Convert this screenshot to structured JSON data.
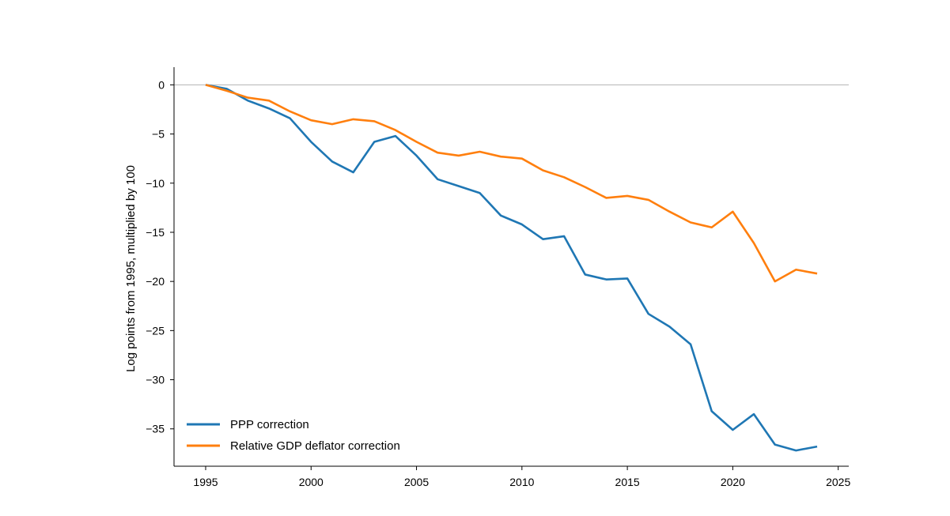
{
  "chart_data": {
    "type": "line",
    "title": "",
    "xlabel": "",
    "ylabel": "Log points from 1995, multiplied by 100",
    "xlim": [
      1993.5,
      2025.5
    ],
    "ylim": [
      -38.8,
      1.8
    ],
    "x_ticks": [
      1995,
      2000,
      2005,
      2010,
      2015,
      2020,
      2025
    ],
    "y_ticks": [
      0,
      -5,
      -10,
      -15,
      -20,
      -25,
      -30,
      -35
    ],
    "grid": false,
    "reference_line": 0,
    "legend_position": "bottom-left",
    "x": [
      1995,
      1996,
      1997,
      1998,
      1999,
      2000,
      2001,
      2002,
      2003,
      2004,
      2005,
      2006,
      2007,
      2008,
      2009,
      2010,
      2011,
      2012,
      2013,
      2014,
      2015,
      2016,
      2017,
      2018,
      2019,
      2020,
      2021,
      2022,
      2023,
      2024
    ],
    "series": [
      {
        "name": "PPP correction",
        "color": "#1f77b4",
        "values": [
          0,
          -0.4,
          -1.6,
          -2.4,
          -3.4,
          -5.8,
          -7.8,
          -8.9,
          -5.8,
          -5.2,
          -7.2,
          -9.6,
          -10.3,
          -11.0,
          -13.3,
          -14.2,
          -15.7,
          -15.4,
          -19.3,
          -19.8,
          -19.7,
          -23.3,
          -24.6,
          -26.4,
          -33.2,
          -35.1,
          -33.5,
          -36.6,
          -37.2,
          -36.8
        ]
      },
      {
        "name": "Relative GDP deflator correction",
        "color": "#ff7f0e",
        "values": [
          0,
          -0.6,
          -1.3,
          -1.6,
          -2.7,
          -3.6,
          -4.0,
          -3.5,
          -3.7,
          -4.6,
          -5.8,
          -6.9,
          -7.2,
          -6.8,
          -7.3,
          -7.5,
          -8.7,
          -9.4,
          -10.4,
          -11.5,
          -11.3,
          -11.7,
          -12.9,
          -14.0,
          -14.5,
          -12.9,
          -16.1,
          -20.0,
          -18.8,
          -19.2
        ]
      }
    ]
  }
}
